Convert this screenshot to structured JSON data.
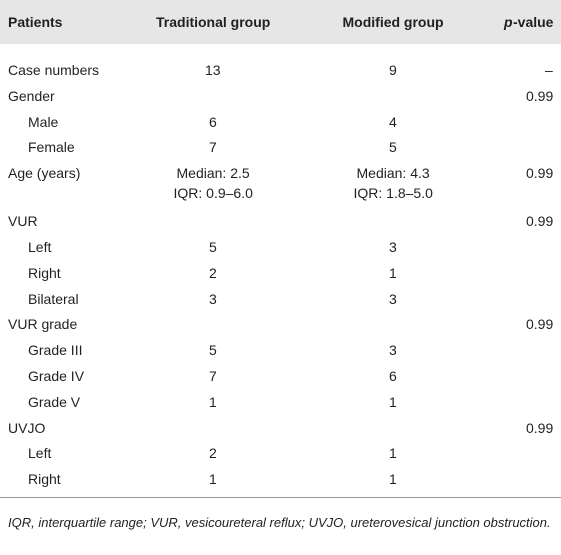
{
  "table": {
    "columns": [
      "Patients",
      "Traditional group",
      "Modified group",
      {
        "italic": "p",
        "text": "-value"
      }
    ],
    "rows": [
      {
        "label": "Case numbers",
        "traditional": "13",
        "modified": "9",
        "p_value": "–"
      },
      {
        "label": "Gender",
        "p_value": "0.99",
        "subrows": [
          {
            "label": "Male",
            "traditional": "6",
            "modified": "4"
          },
          {
            "label": "Female",
            "traditional": "7",
            "modified": "5"
          }
        ]
      },
      {
        "label": "Age (years)",
        "traditional": [
          "Median: 2.5",
          "IQR: 0.9–6.0"
        ],
        "modified": [
          "Median: 4.3",
          "IQR: 1.8–5.0"
        ],
        "p_value": "0.99"
      },
      {
        "label": "VUR",
        "p_value": "0.99",
        "subrows": [
          {
            "label": "Left",
            "traditional": "5",
            "modified": "3"
          },
          {
            "label": "Right",
            "traditional": "2",
            "modified": "1"
          },
          {
            "label": "Bilateral",
            "traditional": "3",
            "modified": "3"
          }
        ]
      },
      {
        "label": "VUR grade",
        "p_value": "0.99",
        "subrows": [
          {
            "label": "Grade III",
            "traditional": "5",
            "modified": "3"
          },
          {
            "label": "Grade IV",
            "traditional": "7",
            "modified": "6"
          },
          {
            "label": "Grade V",
            "traditional": "1",
            "modified": "1"
          }
        ]
      },
      {
        "label": "UVJO",
        "p_value": "0.99",
        "subrows": [
          {
            "label": "Left",
            "traditional": "2",
            "modified": "1"
          },
          {
            "label": "Right",
            "traditional": "1",
            "modified": "1"
          }
        ]
      }
    ],
    "footnote": "IQR, interquartile range; VUR, vesicoureteral reflux; UVJO, ureterovesical junction obstruction."
  }
}
